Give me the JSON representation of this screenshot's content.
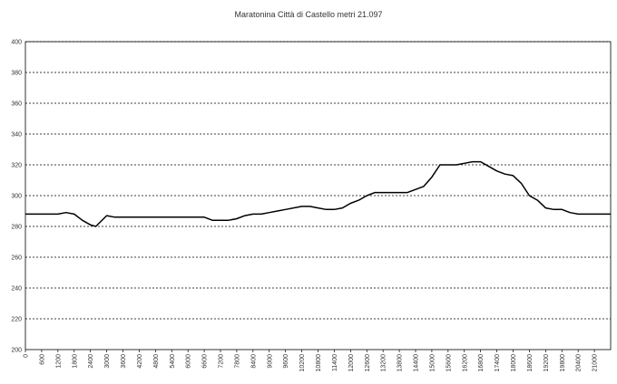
{
  "chart_data": {
    "type": "line",
    "title": "Maratonina Città di Castello metri 21.097",
    "xlabel": "",
    "ylabel": "",
    "ylim": [
      200,
      400
    ],
    "yticks": [
      "200",
      "220",
      "240",
      "260",
      "280",
      "300",
      "320",
      "340",
      "360",
      "380",
      "400"
    ],
    "xlim": [
      0,
      21600
    ],
    "xticks": [
      "0",
      "600",
      "1200",
      "1800",
      "2400",
      "3000",
      "3600",
      "4200",
      "4800",
      "5400",
      "6000",
      "6600",
      "7200",
      "7800",
      "8400",
      "9000",
      "9600",
      "10200",
      "10800",
      "11400",
      "12000",
      "12600",
      "13200",
      "13800",
      "14400",
      "15000",
      "15600",
      "16200",
      "16800",
      "17400",
      "18000",
      "18600",
      "19200",
      "19800",
      "20400",
      "21000"
    ],
    "grid": "horizontal dashed",
    "line_color": "#000000",
    "series": [
      {
        "x": [
          0,
          600,
          1200,
          1500,
          1800,
          2100,
          2400,
          2600,
          3000,
          3300,
          3600,
          4200,
          4800,
          5400,
          6000,
          6600,
          6900,
          7200,
          7500,
          7800,
          8100,
          8400,
          8700,
          9000,
          9300,
          9600,
          10200,
          10500,
          10800,
          11100,
          11400,
          11700,
          12000,
          12300,
          12600,
          12900,
          13200,
          13500,
          13800,
          14100,
          14400,
          14700,
          15000,
          15300,
          15600,
          15900,
          16200,
          16500,
          16800,
          17100,
          17400,
          17700,
          18000,
          18300,
          18600,
          18900,
          19200,
          19500,
          19800,
          20100,
          20400,
          21000,
          21600
        ],
        "values": [
          288,
          288,
          288,
          289,
          288,
          284,
          281,
          280,
          287,
          286,
          286,
          286,
          286,
          286,
          286,
          286,
          284,
          284,
          284,
          285,
          287,
          288,
          288,
          289,
          290,
          291,
          293,
          293,
          292,
          291,
          291,
          292,
          295,
          297,
          300,
          302,
          302,
          302,
          302,
          302,
          304,
          306,
          312,
          320,
          320,
          320,
          321,
          322,
          322,
          319,
          316,
          314,
          313,
          308,
          300,
          297,
          292,
          291,
          291,
          289,
          288,
          288,
          288
        ]
      }
    ]
  }
}
